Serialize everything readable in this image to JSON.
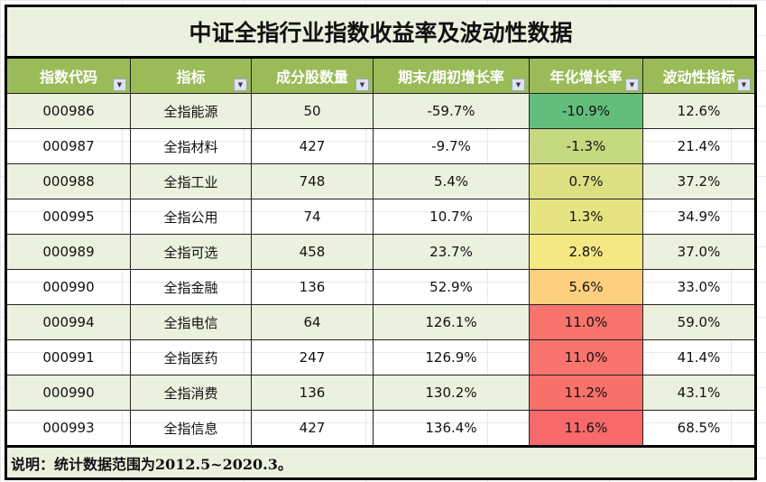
{
  "title": "中证全指行业指数收益率及波动性数据",
  "headers": [
    "指数代码",
    "指标",
    "成分股数量",
    "期末/期初增长率",
    "年化增长率",
    "波动性指标"
  ],
  "rows": [
    {
      "code": "000986",
      "name": "全指能源",
      "count": "50",
      "growth": "-59.7%",
      "annual": "-10.9%",
      "vol": "12.6%",
      "color": "#63be7b"
    },
    {
      "code": "000987",
      "name": "全指材料",
      "count": "427",
      "growth": "-9.7%",
      "annual": "-1.3%",
      "vol": "21.4%",
      "color": "#c5d980"
    },
    {
      "code": "000988",
      "name": "全指工业",
      "count": "748",
      "growth": "5.4%",
      "annual": "0.7%",
      "vol": "37.2%",
      "color": "#dde082"
    },
    {
      "code": "000995",
      "name": "全指公用",
      "count": "74",
      "growth": "10.7%",
      "annual": "1.3%",
      "vol": "34.9%",
      "color": "#e6e383"
    },
    {
      "code": "000989",
      "name": "全指可选",
      "count": "458",
      "growth": "23.7%",
      "annual": "2.8%",
      "vol": "37.0%",
      "color": "#f4e884"
    },
    {
      "code": "000990",
      "name": "全指金融",
      "count": "136",
      "growth": "52.9%",
      "annual": "5.6%",
      "vol": "33.0%",
      "color": "#fdd07f"
    },
    {
      "code": "000994",
      "name": "全指电信",
      "count": "64",
      "growth": "126.1%",
      "annual": "11.0%",
      "vol": "59.0%",
      "color": "#f8746d"
    },
    {
      "code": "000991",
      "name": "全指医药",
      "count": "247",
      "growth": "126.9%",
      "annual": "11.0%",
      "vol": "41.4%",
      "color": "#f8746d"
    },
    {
      "code": "000990",
      "name": "全指消费",
      "count": "136",
      "growth": "130.2%",
      "annual": "11.2%",
      "vol": "43.1%",
      "color": "#f8716b"
    },
    {
      "code": "000993",
      "name": "全指信息",
      "count": "427",
      "growth": "136.4%",
      "annual": "11.6%",
      "vol": "68.5%",
      "color": "#f8696b"
    }
  ],
  "note": "说明：统计数据范围为2012.5~2020.3。",
  "icons": {
    "filter": "filter-dropdown-icon"
  }
}
